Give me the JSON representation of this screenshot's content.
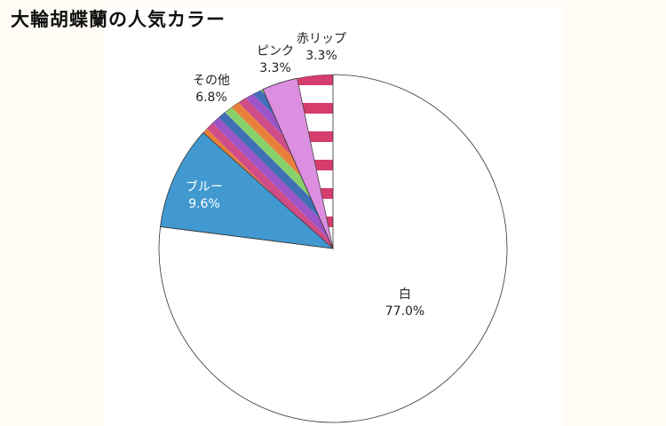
{
  "title": "大輪胡蝶蘭の人気カラー",
  "chart_data": {
    "type": "pie",
    "title": "大輪胡蝶蘭の人気カラー",
    "slices": [
      {
        "label": "白",
        "value": 77.0,
        "value_label": "77.0%",
        "color": "#ffffff",
        "pattern": "none"
      },
      {
        "label": "ブルー",
        "value": 9.6,
        "value_label": "9.6%",
        "color": "#4199d0",
        "pattern": "none"
      },
      {
        "label": "その他",
        "value": 6.8,
        "value_label": "6.8%",
        "color": "#e87f3a",
        "pattern": "multicolor-diagonal-stripes"
      },
      {
        "label": "ピンク",
        "value": 3.3,
        "value_label": "3.3%",
        "color": "#dc8ee0",
        "pattern": "none"
      },
      {
        "label": "赤リップ",
        "value": 3.3,
        "value_label": "3.3%",
        "color": "#d63d6d",
        "pattern": "horizontal-stripes"
      }
    ],
    "start_angle": "12 o'clock",
    "direction": "clockwise",
    "legend": "none",
    "stripe_colors": {
      "other": [
        "#e87f3a",
        "#d04d88",
        "#9c55c9",
        "#3f6fb5",
        "#8bcf6a"
      ],
      "red_lip": [
        "#d63d6d",
        "#ffffff"
      ]
    }
  }
}
